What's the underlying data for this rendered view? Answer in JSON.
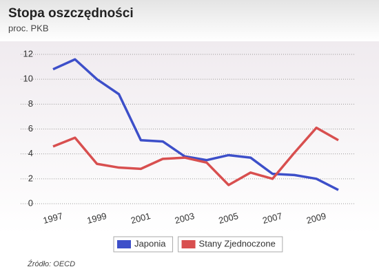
{
  "chart_data": {
    "type": "line",
    "title": "Stopa oszczędności",
    "subtitle": "proc. PKB",
    "x": [
      1997,
      1998,
      1999,
      2000,
      2001,
      2002,
      2003,
      2004,
      2005,
      2006,
      2007,
      2008,
      2009,
      2010
    ],
    "series": [
      {
        "name": "Japonia",
        "color": "#3d4fc9",
        "values": [
          10.8,
          11.6,
          10.0,
          8.8,
          5.1,
          5.0,
          3.8,
          3.5,
          3.9,
          3.7,
          2.4,
          2.3,
          2.0,
          1.1
        ]
      },
      {
        "name": "Stany Zjednoczone",
        "color": "#d84f4f",
        "values": [
          4.6,
          5.3,
          3.2,
          2.9,
          2.8,
          3.6,
          3.7,
          3.3,
          1.5,
          2.5,
          2.0,
          4.1,
          6.1,
          5.1
        ]
      }
    ],
    "xlim": [
      1997,
      2010
    ],
    "xticks": [
      1997,
      1999,
      2001,
      2003,
      2005,
      2007,
      2009
    ],
    "ylim": [
      0,
      12
    ],
    "yticks": [
      0,
      2,
      4,
      6,
      8,
      10,
      12
    ],
    "grid": true,
    "source": "Źródło: OECD"
  }
}
